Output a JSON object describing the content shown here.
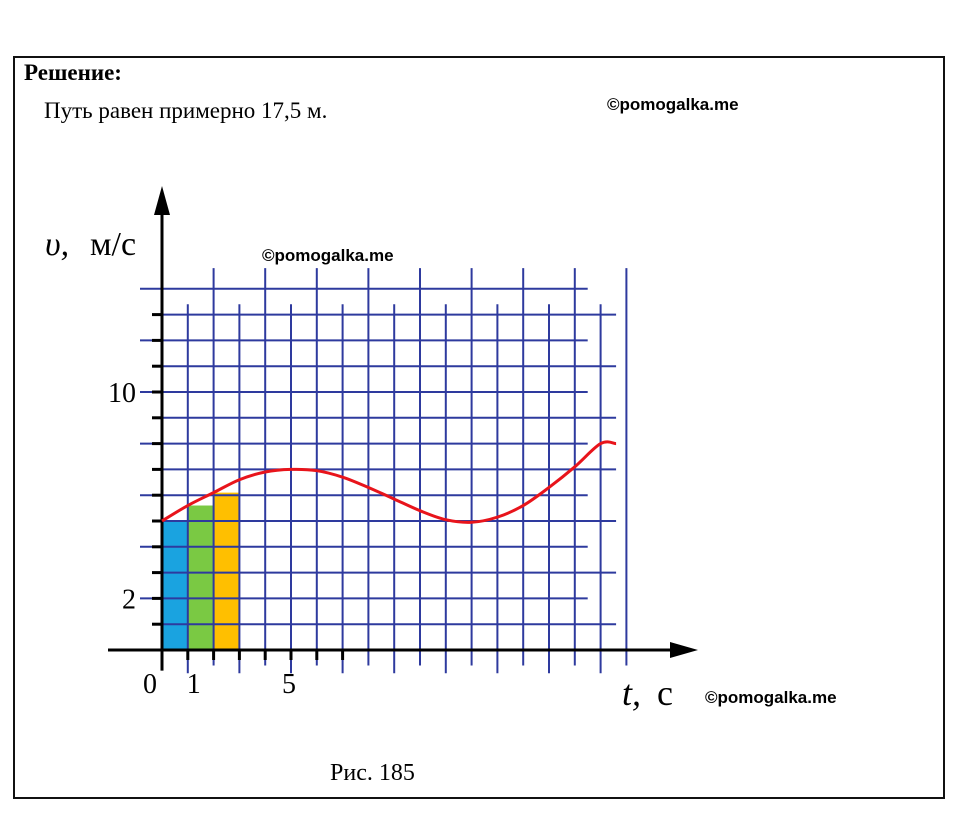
{
  "solution": {
    "heading": "Решение:",
    "answer": "Путь равен примерно 17,5 м."
  },
  "watermarks": [
    "©pomogalka.me",
    "©pomogalka.me",
    "©pomogalka.me"
  ],
  "caption": "Рис. 185",
  "chart_data": {
    "type": "line",
    "xlabel_var": "t,",
    "xlabel_unit": "с",
    "ylabel_var": "υ,",
    "ylabel_unit": "м/с",
    "x_tick_labels": [
      {
        "value": 0,
        "text": "0"
      },
      {
        "value": 1,
        "text": "1"
      },
      {
        "value": 5,
        "text": "5"
      }
    ],
    "y_tick_labels": [
      {
        "value": 2,
        "text": "2"
      },
      {
        "value": 10,
        "text": "10"
      }
    ],
    "xlim": [
      0,
      18
    ],
    "ylim": [
      0,
      14
    ],
    "grid": true,
    "series": [
      {
        "color": "#e8141b",
        "x": [
          0,
          1,
          2,
          3,
          4,
          5,
          6,
          7,
          8,
          9,
          10,
          11,
          12,
          13,
          14,
          15,
          16,
          17,
          17.6
        ],
        "y": [
          5.0,
          5.6,
          6.1,
          6.6,
          6.9,
          7.0,
          6.95,
          6.7,
          6.3,
          5.85,
          5.4,
          5.05,
          4.95,
          5.15,
          5.6,
          6.3,
          7.1,
          8.0,
          8.0
        ]
      }
    ],
    "filled_strips": [
      {
        "x0": 0,
        "x1": 1,
        "height": 5.0,
        "color": "#1aa3e0"
      },
      {
        "x0": 1,
        "x1": 2,
        "height": 5.6,
        "color": "#7ac943"
      },
      {
        "x0": 2,
        "x1": 3,
        "height": 6.1,
        "color": "#ffbf00"
      }
    ],
    "colors": {
      "grid": "#2e3a9e",
      "axis": "#000000"
    }
  }
}
